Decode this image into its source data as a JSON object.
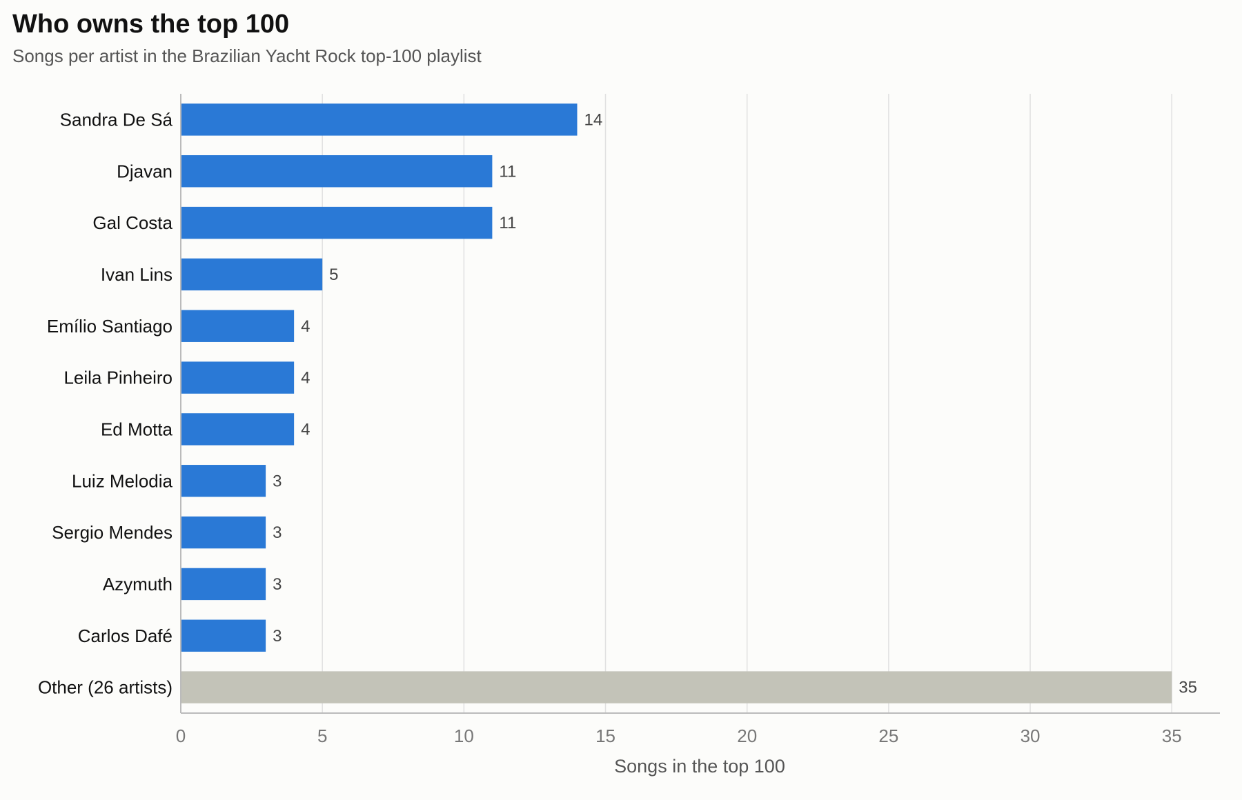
{
  "chart_data": {
    "type": "bar",
    "orientation": "horizontal",
    "title": "Who owns the top 100",
    "subtitle": "Songs per artist in the Brazilian Yacht Rock top-100 playlist",
    "xlabel": "Songs in the top 100",
    "ylabel": "",
    "categories": [
      "Sandra De Sá",
      "Djavan",
      "Gal Costa",
      "Ivan Lins",
      "Emílio Santiago",
      "Leila Pinheiro",
      "Ed Motta",
      "Luiz Melodia",
      "Sergio Mendes",
      "Azymuth",
      "Carlos Dafé",
      "Other (26 artists)"
    ],
    "values": [
      14,
      11,
      11,
      5,
      4,
      4,
      4,
      3,
      3,
      3,
      3,
      35
    ],
    "value_labels": [
      "14",
      "11",
      "11",
      "5",
      "4",
      "4",
      "4",
      "3",
      "3",
      "3",
      "3",
      "35"
    ],
    "xlim": [
      0,
      36.7
    ],
    "xticks": [
      0,
      5,
      10,
      15,
      20,
      25,
      30,
      35
    ],
    "xtick_labels": [
      "0",
      "5",
      "10",
      "15",
      "20",
      "25",
      "30",
      "35"
    ],
    "grid": "vertical",
    "legend": "none",
    "colors": {
      "bar": "#2a79d6",
      "other_bar": "#c3c3b8",
      "grid": "#e0e0e0",
      "axis": "#bbbbbb",
      "background": "#fcfcfa"
    }
  }
}
